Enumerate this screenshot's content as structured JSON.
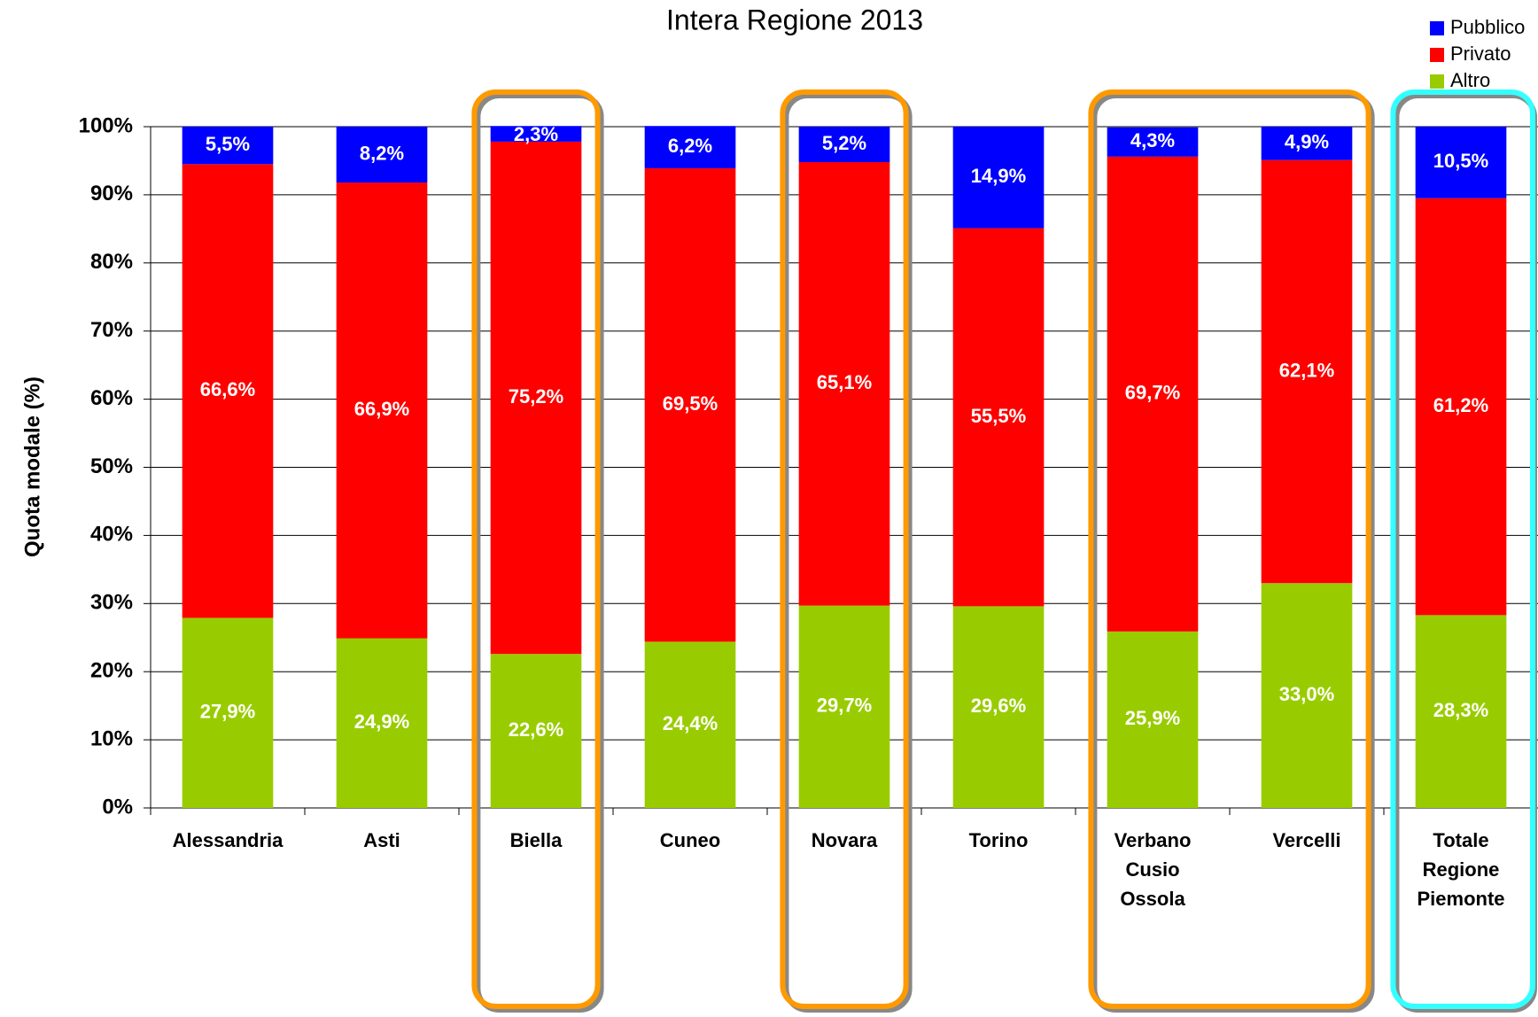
{
  "chart_data": {
    "type": "stacked_bar",
    "title": "Intera Regione 2013",
    "y_label": "Quota modale (%)",
    "categories": [
      "Alessandria",
      "Asti",
      "Biella",
      "Cuneo",
      "Novara",
      "Torino",
      "Verbano Cusio Ossola",
      "Vercelli",
      "Totale Regione Piemonte"
    ],
    "series": [
      {
        "name": "Altro",
        "color": "#99cc00",
        "values": [
          27.9,
          24.9,
          22.6,
          24.4,
          29.7,
          29.6,
          25.9,
          33.0,
          28.3
        ],
        "value_labels": [
          "27,9%",
          "24,9%",
          "22,6%",
          "24,4%",
          "29,7%",
          "29,6%",
          "25,9%",
          "33,0%",
          "28,3%"
        ]
      },
      {
        "name": "Privato",
        "color": "#ff0000",
        "values": [
          66.6,
          66.9,
          75.2,
          69.5,
          65.1,
          55.5,
          69.7,
          62.1,
          61.2
        ],
        "value_labels": [
          "66,6%",
          "66,9%",
          "75,2%",
          "69,5%",
          "65,1%",
          "55,5%",
          "69,7%",
          "62,1%",
          "61,2%"
        ]
      },
      {
        "name": "Pubblico",
        "color": "#0000ff",
        "values": [
          5.5,
          8.2,
          2.3,
          6.2,
          5.2,
          14.9,
          4.3,
          4.9,
          10.5
        ],
        "value_labels": [
          "5,5%",
          "8,2%",
          "2,3%",
          "6,2%",
          "5,2%",
          "14,9%",
          "4,3%",
          "4,9%",
          "10,5%"
        ]
      }
    ],
    "ylim": [
      0,
      100
    ],
    "yticks": [
      {
        "value": 0,
        "label": "0%"
      },
      {
        "value": 10,
        "label": "10%"
      },
      {
        "value": 20,
        "label": "20%"
      },
      {
        "value": 30,
        "label": "30%"
      },
      {
        "value": 40,
        "label": "40%"
      },
      {
        "value": 50,
        "label": "50%"
      },
      {
        "value": 60,
        "label": "60%"
      },
      {
        "value": 70,
        "label": "70%"
      },
      {
        "value": 80,
        "label": "80%"
      },
      {
        "value": 90,
        "label": "90%"
      },
      {
        "value": 100,
        "label": "100%"
      }
    ],
    "grid": true,
    "legend": "top-right"
  }
}
